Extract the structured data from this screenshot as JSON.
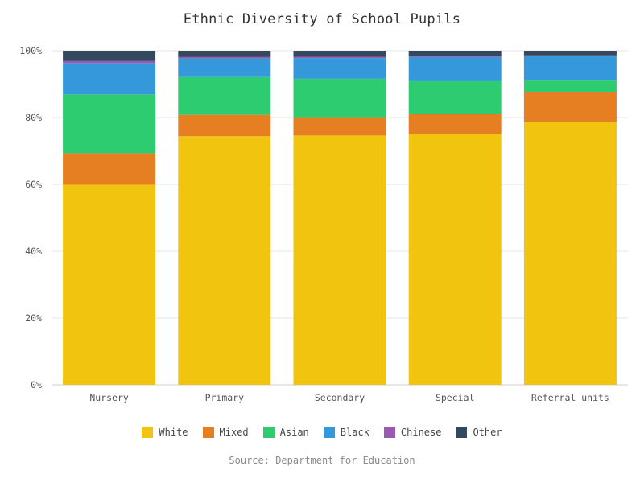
{
  "chart_data": {
    "type": "bar",
    "stacked": true,
    "title": "Ethnic Diversity of School Pupils",
    "source": "Source: Department for Education",
    "categories": [
      "Nursery",
      "Primary",
      "Secondary",
      "Special",
      "Referral units"
    ],
    "ylim": [
      0,
      100
    ],
    "yticks": [
      "0%",
      "20%",
      "40%",
      "60%",
      "80%",
      "100%"
    ],
    "grid": true,
    "legend_position": "bottom",
    "series": [
      {
        "name": "White",
        "color": "#f1c40f",
        "values": [
          59.9,
          74.4,
          74.6,
          75.0,
          78.7
        ]
      },
      {
        "name": "Mixed",
        "color": "#e67e22",
        "values": [
          9.4,
          6.4,
          5.5,
          6.0,
          9.0
        ]
      },
      {
        "name": "Asian",
        "color": "#2ecc71",
        "values": [
          17.6,
          11.3,
          11.5,
          10.1,
          3.6
        ]
      },
      {
        "name": "Black",
        "color": "#3498db",
        "values": [
          9.4,
          5.6,
          6.2,
          7.0,
          7.1
        ]
      },
      {
        "name": "Chinese",
        "color": "#9b59b6",
        "values": [
          0.6,
          0.4,
          0.4,
          0.3,
          0.2
        ]
      },
      {
        "name": "Other",
        "color": "#34495e",
        "values": [
          3.1,
          1.9,
          1.8,
          1.6,
          1.4
        ]
      }
    ]
  }
}
